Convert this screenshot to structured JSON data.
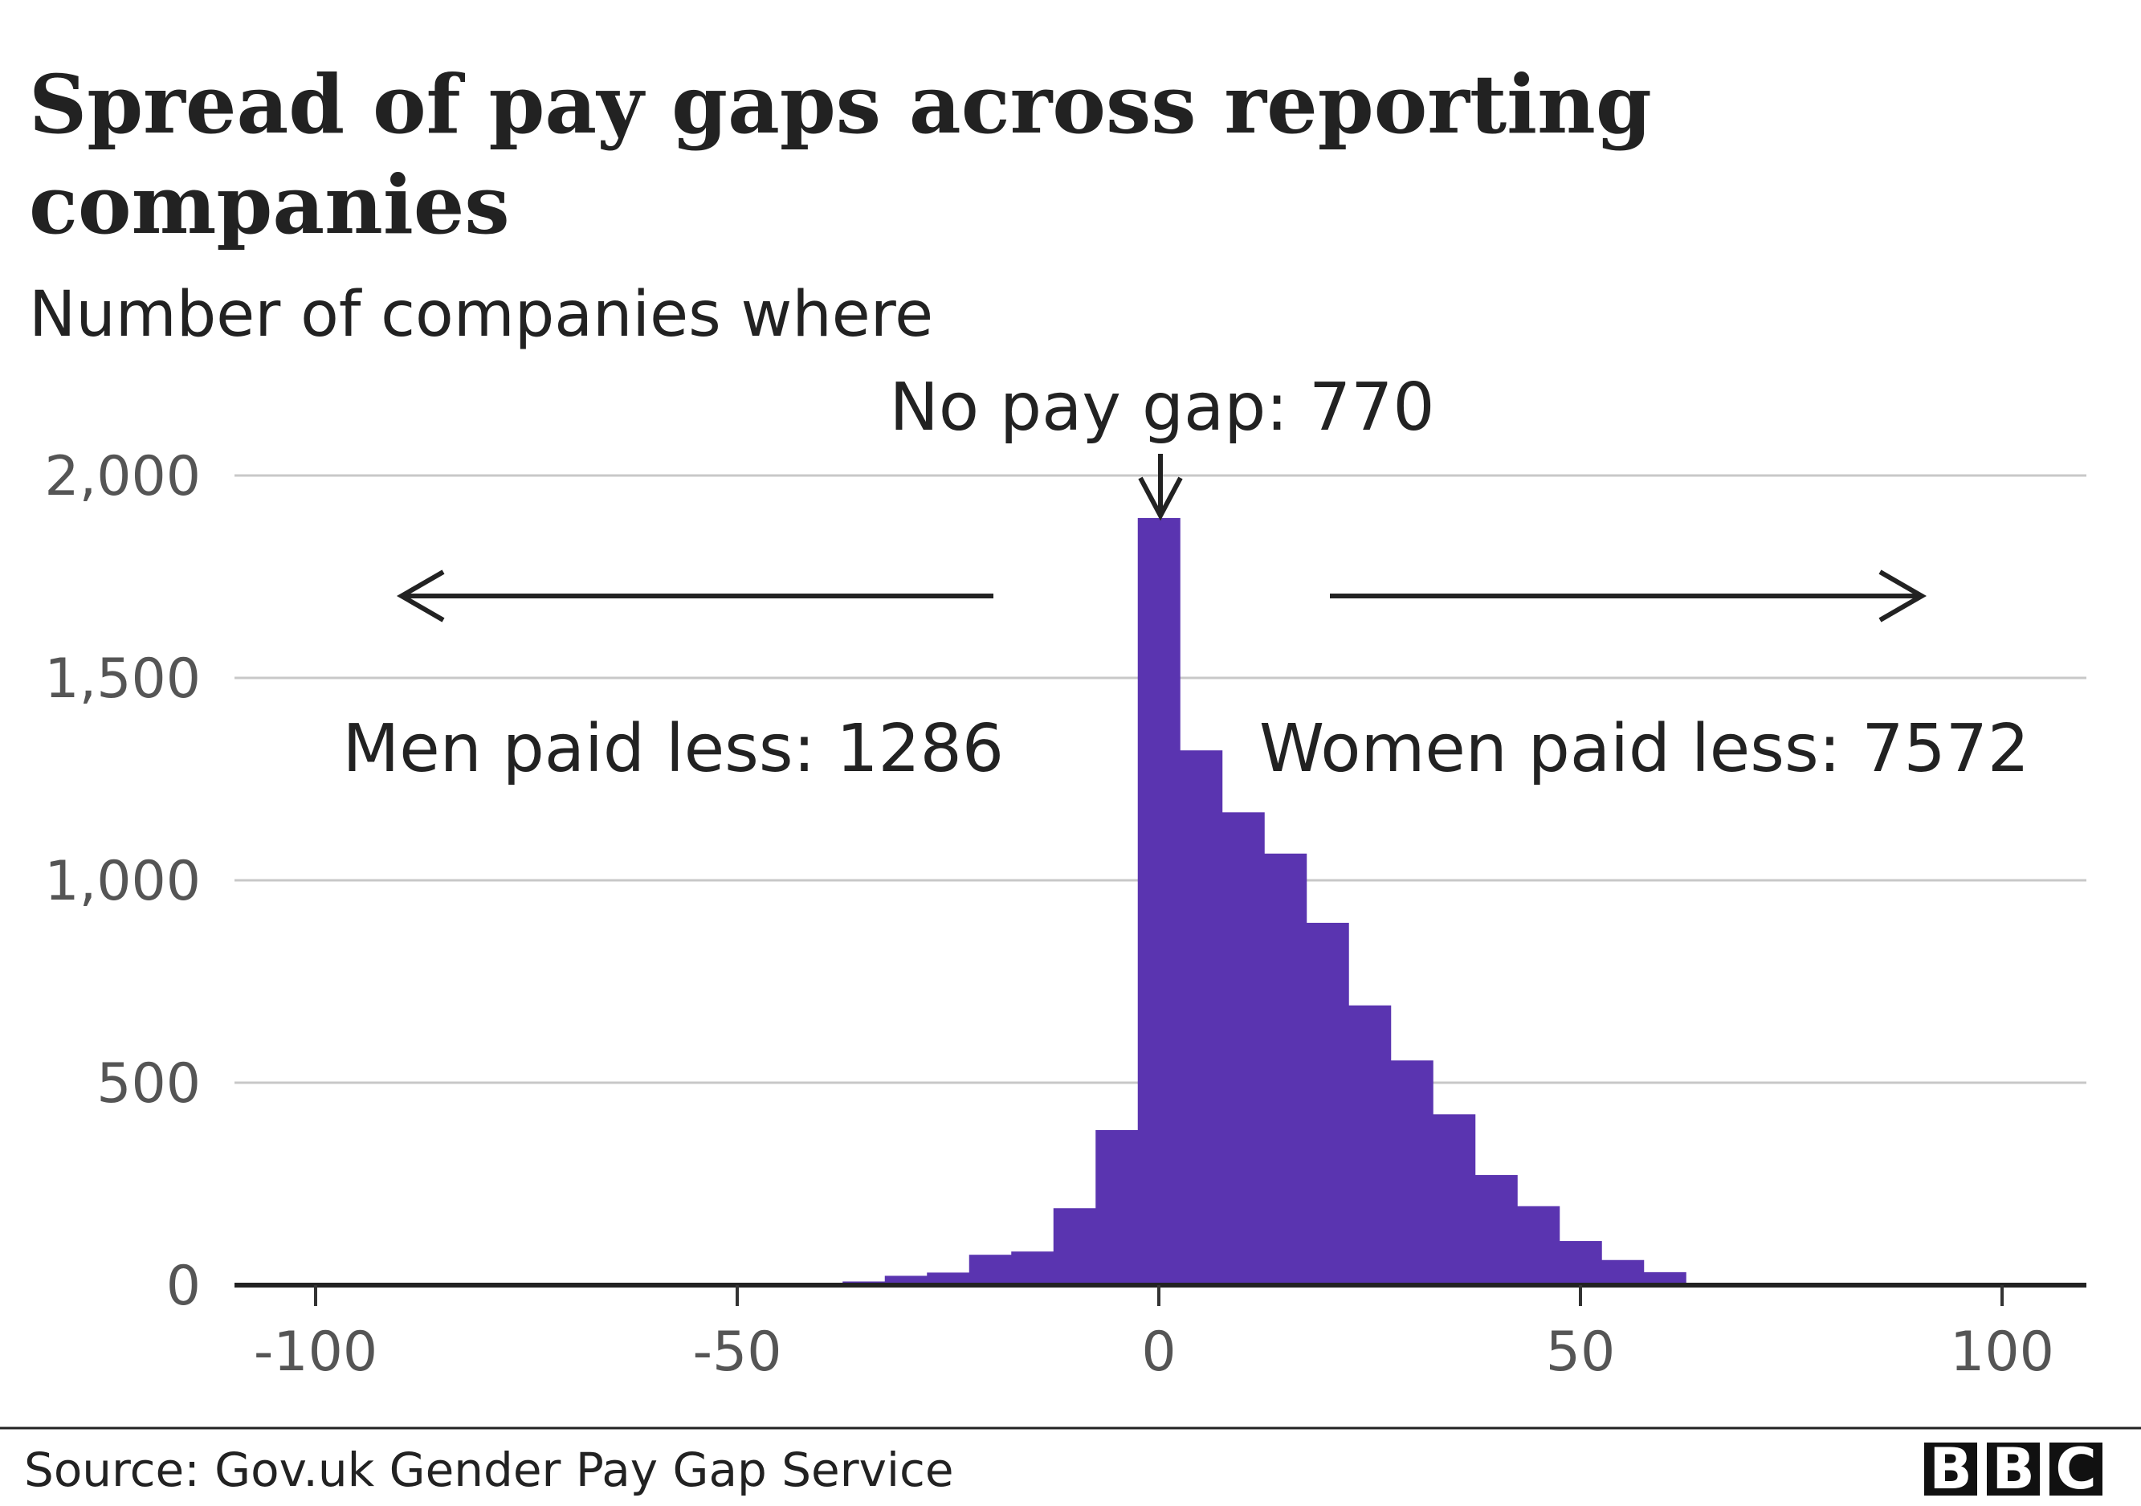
{
  "chart_data": {
    "type": "bar",
    "title": "Spread of pay gaps across reporting companies",
    "title_lines": [
      "Spread of pay gaps across reporting",
      "companies"
    ],
    "subtitle": "Number of companies where",
    "bin_width": 5,
    "x": [
      -45,
      -40,
      -35,
      -30,
      -25,
      -20,
      -15,
      -10,
      -5,
      0,
      5,
      10,
      15,
      20,
      25,
      30,
      35,
      40,
      45,
      50,
      55,
      60,
      65
    ],
    "values": [
      1,
      4,
      9,
      23,
      31,
      75,
      83,
      190,
      383,
      1895,
      1321,
      1168,
      1066,
      895,
      691,
      555,
      422,
      272,
      195,
      109,
      62,
      32,
      5
    ],
    "xlim": [
      -110,
      110
    ],
    "ylim": [
      0,
      2000
    ],
    "x_ticks": [
      "-100",
      "-50",
      "0",
      "50",
      "100"
    ],
    "x_tick_values": [
      -100,
      -50,
      0,
      50,
      100
    ],
    "y_ticks": [
      "0",
      "500",
      "1,000",
      "1,500",
      "2,000"
    ],
    "y_tick_values": [
      0,
      500,
      1000,
      1500,
      2000
    ],
    "grid": true,
    "bar_color": "#5a34b0",
    "annotations": {
      "no_gap": "No pay gap: 770",
      "men_less": "Men paid less: 1286",
      "women_less": "Women paid less: 7572"
    }
  },
  "footer": {
    "source": "Source: Gov.uk Gender Pay Gap Service",
    "logo": [
      "B",
      "B",
      "C"
    ]
  }
}
